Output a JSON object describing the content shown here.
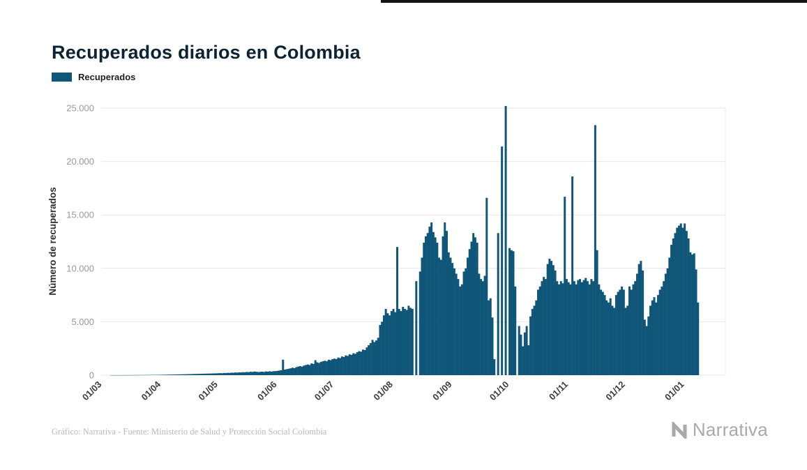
{
  "header": {
    "title": "Recuperados diarios en Colombia"
  },
  "legend": {
    "label": "Recuperados",
    "color": "#0F5679"
  },
  "footer": {
    "credit": "Gráfico: Narrativa - Fuente: Ministerio de Salud y Protección Social Colombia",
    "brand": "Narrativa"
  },
  "chart_data": {
    "type": "bar",
    "title": "Recuperados diarios en Colombia",
    "xlabel": "",
    "ylabel": "Número de recuperados",
    "ylim": [
      0,
      25000
    ],
    "grid": "horizontal",
    "legend_position": "top-left",
    "yticks": [
      0,
      5000,
      10000,
      15000,
      20000,
      25000
    ],
    "ytick_labels": [
      "0",
      "5.000",
      "10.000",
      "15.000",
      "20.000",
      "25.000"
    ],
    "xtick_labels": [
      "01/03",
      "01/04",
      "01/05",
      "01/06",
      "01/07",
      "01/08",
      "01/09",
      "01/10",
      "01/11",
      "01/12",
      "01/01"
    ],
    "xtick_day_index": [
      0,
      31,
      61,
      92,
      122,
      153,
      184,
      214,
      245,
      275,
      306
    ],
    "series": [
      {
        "name": "Recuperados",
        "color": "#0F5679",
        "values": [
          0,
          0,
          0,
          0,
          0,
          1,
          1,
          2,
          2,
          3,
          3,
          4,
          5,
          5,
          6,
          8,
          8,
          10,
          10,
          12,
          14,
          15,
          16,
          18,
          20,
          22,
          24,
          26,
          28,
          30,
          32,
          36,
          40,
          44,
          48,
          52,
          56,
          60,
          64,
          68,
          72,
          76,
          80,
          85,
          90,
          95,
          100,
          105,
          110,
          115,
          120,
          125,
          130,
          135,
          140,
          145,
          150,
          155,
          160,
          165,
          170,
          180,
          190,
          175,
          205,
          195,
          220,
          210,
          235,
          225,
          250,
          240,
          265,
          255,
          280,
          270,
          300,
          285,
          320,
          300,
          340,
          320,
          290,
          310,
          330,
          300,
          350,
          330,
          360,
          340,
          370,
          380,
          400,
          430,
          460,
          1450,
          520,
          560,
          600,
          640,
          700,
          660,
          750,
          800,
          850,
          800,
          900,
          950,
          1000,
          950,
          1100,
          1050,
          1400,
          1200,
          1150,
          1250,
          1300,
          1350,
          1300,
          1450,
          1400,
          1500,
          1550,
          1500,
          1650,
          1600,
          1750,
          1700,
          1850,
          1800,
          1950,
          1900,
          2050,
          2000,
          2150,
          2250,
          2200,
          2400,
          2350,
          2600,
          2800,
          3000,
          3300,
          3100,
          3250,
          3500,
          4700,
          5000,
          5600,
          6200,
          5800,
          5600,
          6000,
          6200,
          5900,
          12000,
          6200,
          6000,
          6400,
          6200,
          6100,
          6500,
          6300,
          6200,
          0,
          8800,
          0,
          9700,
          11000,
          12400,
          13000,
          13300,
          13900,
          14300,
          13400,
          12900,
          12400,
          11000,
          10800,
          13000,
          14300,
          13500,
          11500,
          11000,
          10500,
          10000,
          9500,
          9000,
          8300,
          8500,
          9700,
          10000,
          11000,
          11800,
          12500,
          13300,
          12900,
          12400,
          9500,
          9000,
          8800,
          9300,
          16600,
          7000,
          7200,
          5400,
          1500,
          0,
          13300,
          0,
          21400,
          0,
          25200,
          0,
          11900,
          11700,
          11600,
          8300,
          0,
          4600,
          3800,
          2700,
          4000,
          4600,
          2800,
          5500,
          6200,
          6500,
          7000,
          8000,
          8300,
          8800,
          9200,
          9000,
          10400,
          10900,
          10700,
          10300,
          9800,
          8800,
          8500,
          8800,
          8600,
          16700,
          9000,
          8700,
          8500,
          18600,
          8800,
          8500,
          8900,
          9000,
          8700,
          8900,
          9100,
          8800,
          8500,
          9000,
          8800,
          23400,
          11700,
          8500,
          8000,
          7800,
          7500,
          7000,
          6800,
          7200,
          6500,
          6300,
          7500,
          7800,
          8000,
          8300,
          8000,
          6300,
          6500,
          8300,
          8000,
          8500,
          8800,
          9500,
          10400,
          10700,
          9800,
          5200,
          4600,
          5500,
          6500,
          7000,
          7300,
          6800,
          7500,
          8000,
          8300,
          8800,
          9500,
          10000,
          11000,
          12200,
          12800,
          13300,
          13800,
          14000,
          14200,
          13800,
          14200,
          13500,
          12800,
          11500,
          11300,
          11400,
          9900,
          6800
        ]
      }
    ]
  }
}
